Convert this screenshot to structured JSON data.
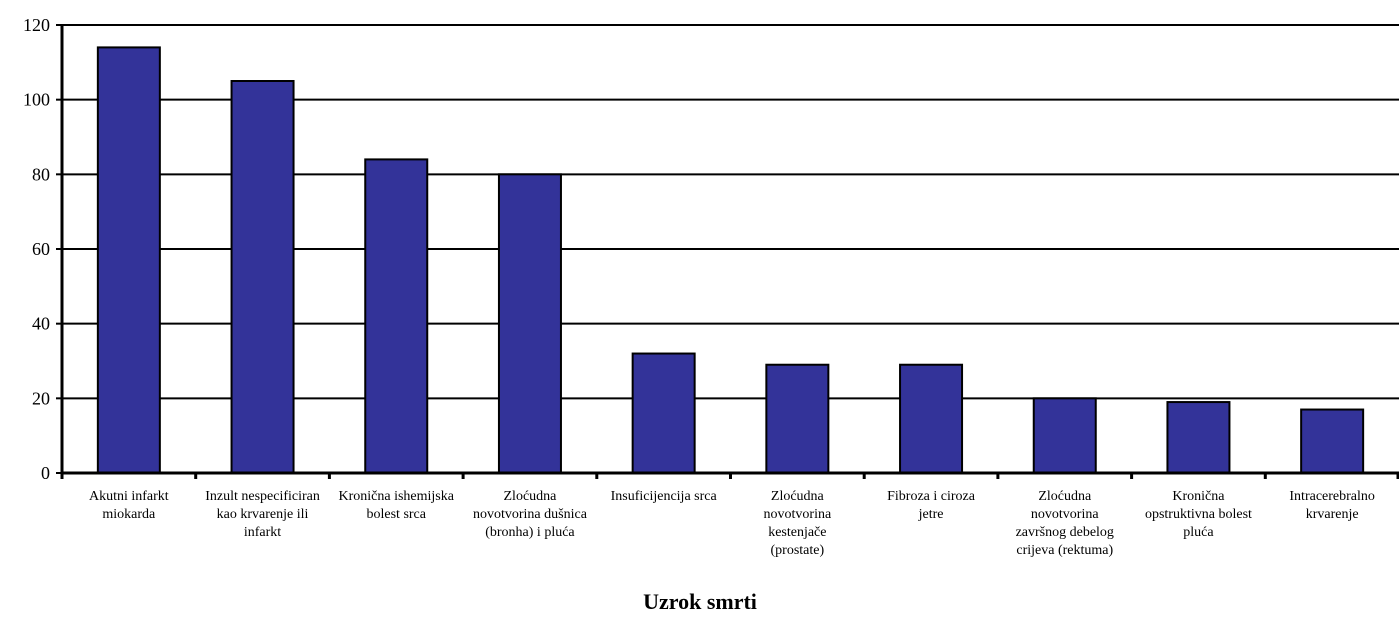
{
  "chart_data": {
    "type": "bar",
    "categories": [
      "Akutni infarkt miokarda",
      "Inzult nespecificiran kao krvarenje ili infarkt",
      "Kronična ishemijska bolest srca",
      "Zloćudna novotvorina dušnica (bronha) i pluća",
      "Insuficijencija srca",
      "Zloćudna novotvorina kestenjače (prostate)",
      "Fibroza i ciroza jetre",
      "Zloćudna novotvorina završnog debelog crijeva (rektuma)",
      "Kronična opstruktivna bolest pluća",
      "Intracerebralno krvarenje"
    ],
    "category_label_lines": [
      [
        "Akutni infarkt",
        "miokarda"
      ],
      [
        "Inzult nespecificiran",
        "kao krvarenje ili",
        "infarkt"
      ],
      [
        "Kronična ishemijska",
        "bolest srca"
      ],
      [
        "Zloćudna",
        "novotvorina dušnica",
        "(bronha) i pluća"
      ],
      [
        "Insuficijencija srca"
      ],
      [
        "Zloćudna",
        "novotvorina",
        "kestenjače",
        "(prostate)"
      ],
      [
        "Fibroza i ciroza",
        "jetre"
      ],
      [
        "Zloćudna",
        "novotvorina",
        "završnog debelog",
        "crijeva (rektuma)"
      ],
      [
        "Kronična",
        "opstruktivna bolest",
        "pluća"
      ],
      [
        "Intracerebralno",
        "krvarenje"
      ]
    ],
    "values": [
      114,
      105,
      84,
      80,
      32,
      29,
      29,
      20,
      19,
      17
    ],
    "title": "",
    "xlabel": "Uzrok smrti",
    "ylabel": "",
    "ylim": [
      0,
      120
    ],
    "yticks": [
      "0",
      "20",
      "40",
      "60",
      "80",
      "100",
      "120"
    ],
    "grid": true,
    "bar_color": "#333399",
    "bar_edge_color": "#000000"
  }
}
